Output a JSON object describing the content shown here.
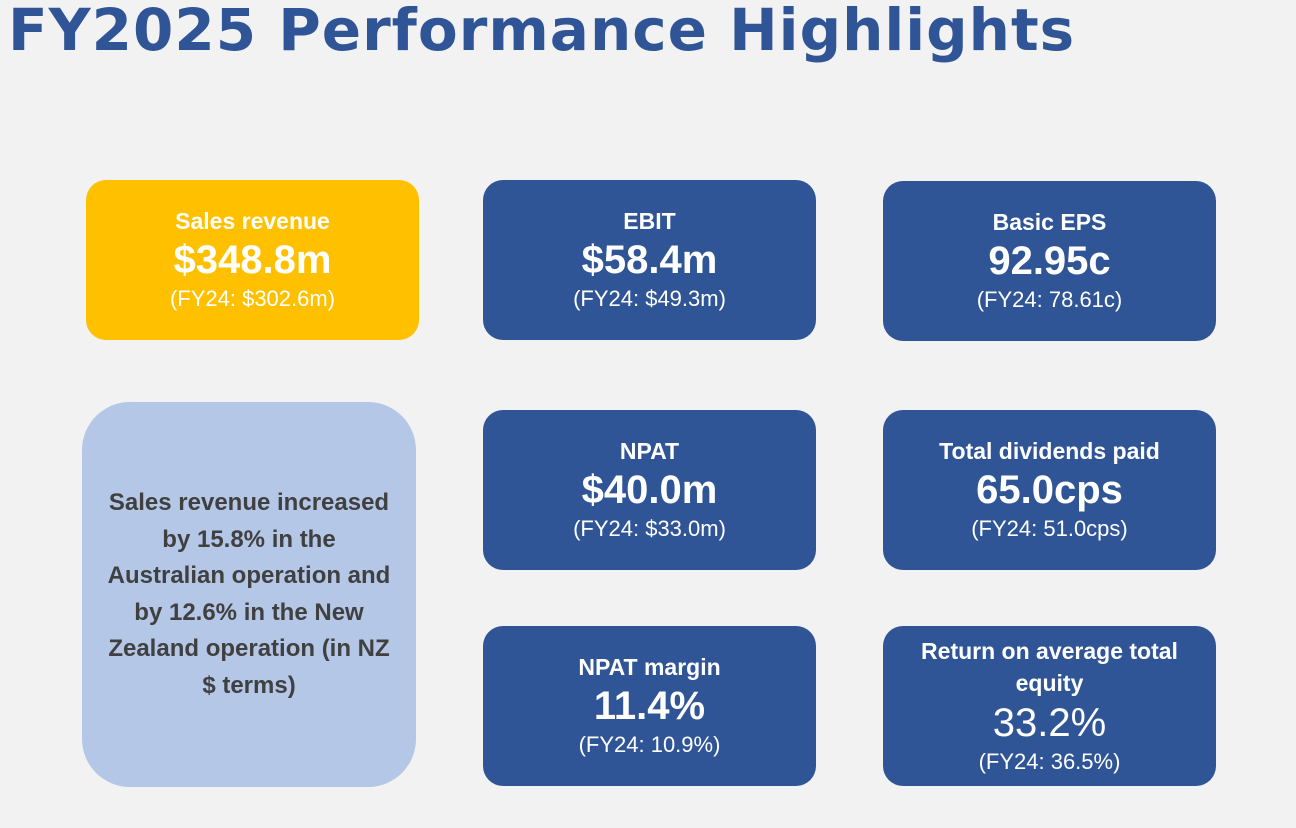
{
  "title": "FY2025 Performance Highlights",
  "colors": {
    "title": "#2f5597",
    "navy": "#2f5597",
    "gold": "#ffc000",
    "note_bg": "#b4c7e7",
    "note_text": "#404040"
  },
  "cards": {
    "sales_revenue": {
      "label": "Sales revenue",
      "value": "$348.8m",
      "prior": "(FY24: $302.6m)"
    },
    "ebit": {
      "label": "EBIT",
      "value": "$58.4m",
      "prior": "(FY24: $49.3m)"
    },
    "basic_eps": {
      "label": "Basic EPS",
      "value": "92.95c",
      "prior": "(FY24: 78.61c)"
    },
    "npat": {
      "label": "NPAT",
      "value": "$40.0m",
      "prior": "(FY24: $33.0m)"
    },
    "total_dividends": {
      "label": "Total dividends paid",
      "value": "65.0cps",
      "prior": "(FY24: 51.0cps)"
    },
    "npat_margin": {
      "label": "NPAT margin",
      "value": "11.4%",
      "prior": "(FY24: 10.9%)"
    },
    "return_on_equity": {
      "label": "Return on average total equity",
      "value": "33.2%",
      "prior": "(FY24: 36.5%)"
    }
  },
  "note": "Sales revenue increased by 15.8% in the Australian operation and by 12.6% in the New Zealand operation (in NZ $ terms)"
}
